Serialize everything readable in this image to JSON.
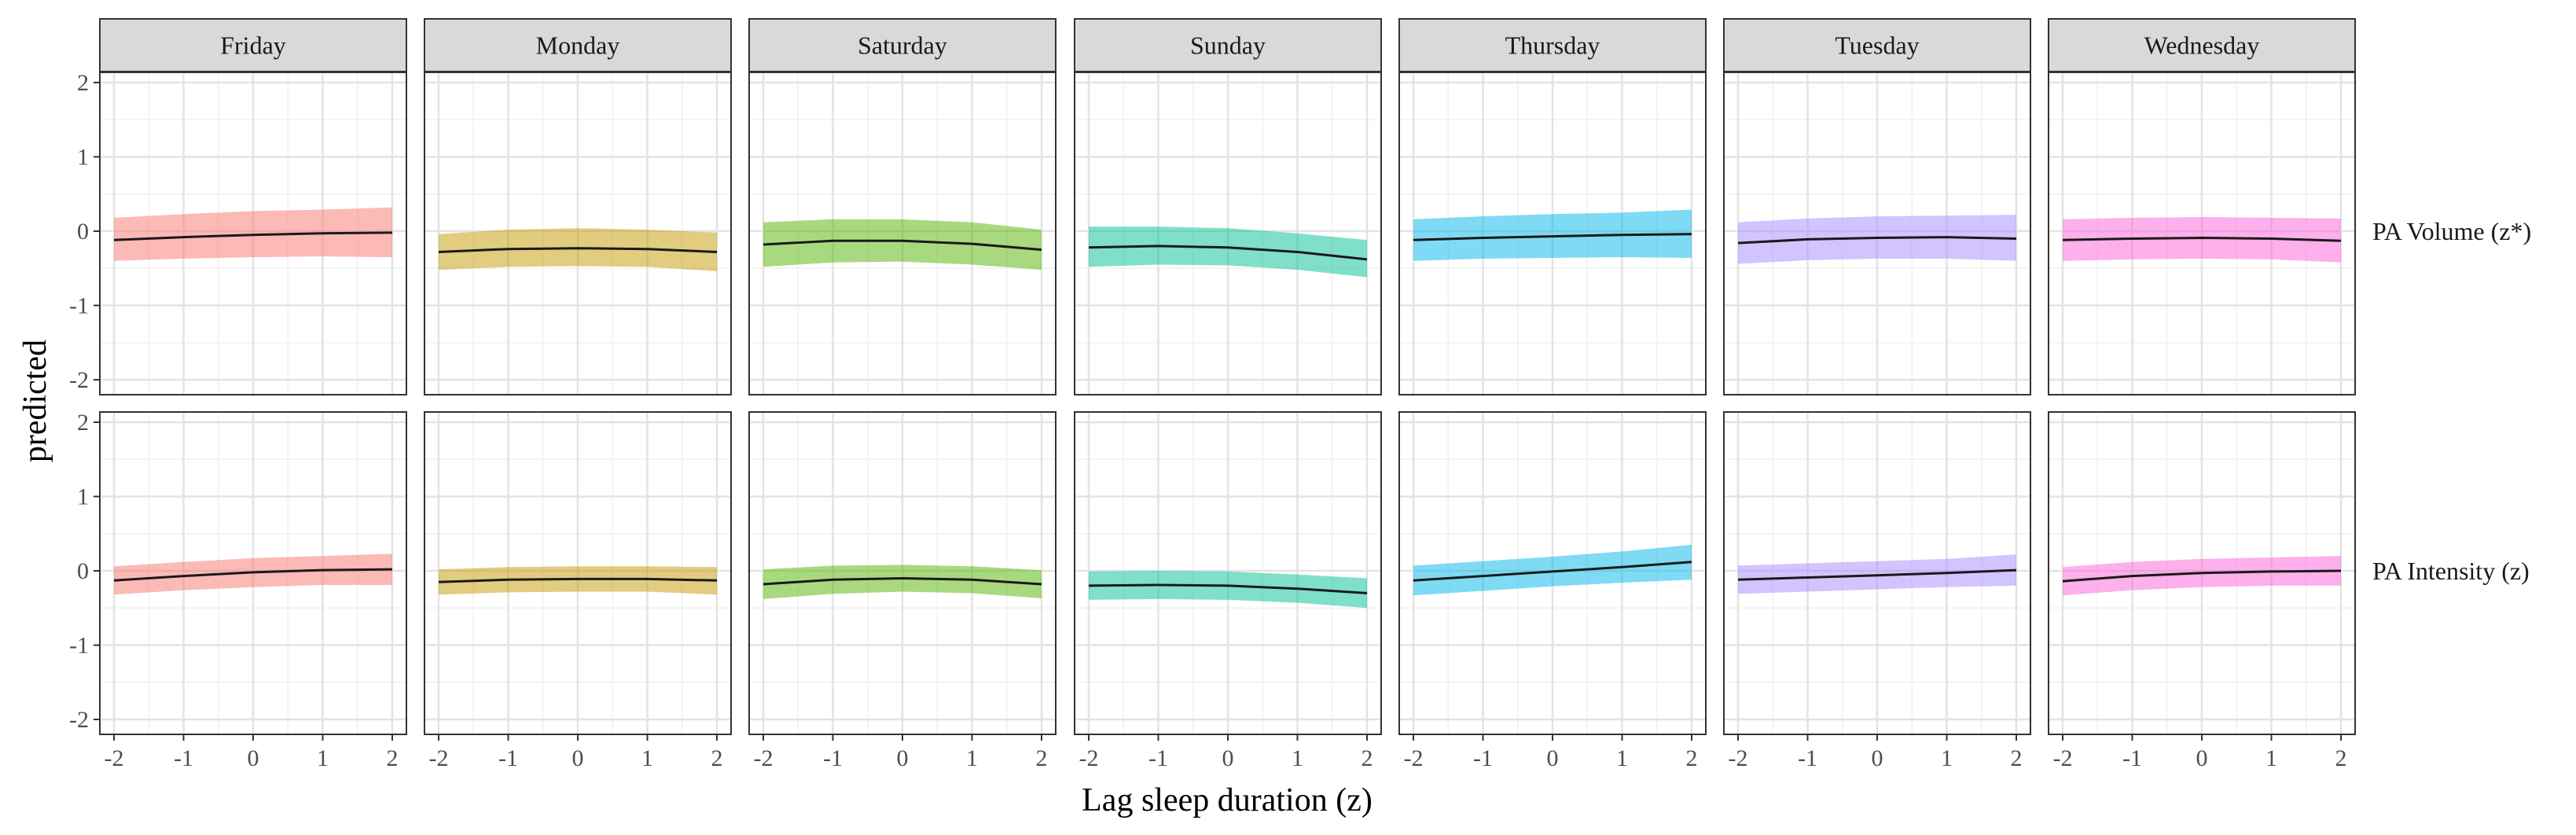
{
  "chart_data": {
    "type": "line",
    "xlabel": "Lag sleep duration (z)",
    "ylabel": "predicted",
    "xlim": [
      -2,
      2
    ],
    "ylim": [
      -2,
      2
    ],
    "xticks": [
      -2,
      -1,
      0,
      1,
      2
    ],
    "yticks": [
      -2,
      -1,
      0,
      1,
      2
    ],
    "xtick_labels": [
      "-2",
      "-1",
      "0",
      "1",
      "2"
    ],
    "ytick_labels": [
      "-2",
      "-1",
      "0",
      "1",
      "2"
    ],
    "columns": [
      "Friday",
      "Monday",
      "Saturday",
      "Sunday",
      "Thursday",
      "Tuesday",
      "Wednesday"
    ],
    "rows": [
      "PA Volume (z*)",
      "PA Intensity (z)"
    ],
    "colors": {
      "Friday": "#F8766D",
      "Monday": "#C49A00",
      "Saturday": "#53B400",
      "Sunday": "#00C094",
      "Thursday": "#00B6EB",
      "Tuesday": "#A58AFF",
      "Wednesday": "#FB61D7"
    },
    "x": [
      -2,
      -1,
      0,
      1,
      2
    ],
    "panels": [
      {
        "row": "PA Volume (z*)",
        "day": "Friday",
        "fit": [
          -0.12,
          -0.08,
          -0.05,
          -0.03,
          -0.02
        ],
        "lower": [
          -0.4,
          -0.37,
          -0.35,
          -0.34,
          -0.35
        ],
        "upper": [
          0.18,
          0.23,
          0.27,
          0.29,
          0.32
        ]
      },
      {
        "row": "PA Volume (z*)",
        "day": "Monday",
        "fit": [
          -0.28,
          -0.24,
          -0.23,
          -0.24,
          -0.28
        ],
        "lower": [
          -0.52,
          -0.48,
          -0.47,
          -0.48,
          -0.54
        ],
        "upper": [
          -0.04,
          0.02,
          0.04,
          0.02,
          -0.02
        ]
      },
      {
        "row": "PA Volume (z*)",
        "day": "Saturday",
        "fit": [
          -0.18,
          -0.13,
          -0.13,
          -0.17,
          -0.25
        ],
        "lower": [
          -0.48,
          -0.42,
          -0.41,
          -0.45,
          -0.52
        ],
        "upper": [
          0.12,
          0.16,
          0.16,
          0.12,
          0.02
        ]
      },
      {
        "row": "PA Volume (z*)",
        "day": "Sunday",
        "fit": [
          -0.22,
          -0.2,
          -0.22,
          -0.28,
          -0.38
        ],
        "lower": [
          -0.48,
          -0.45,
          -0.46,
          -0.52,
          -0.62
        ],
        "upper": [
          0.06,
          0.06,
          0.04,
          -0.03,
          -0.12
        ]
      },
      {
        "row": "PA Volume (z*)",
        "day": "Thursday",
        "fit": [
          -0.12,
          -0.09,
          -0.07,
          -0.05,
          -0.04
        ],
        "lower": [
          -0.4,
          -0.37,
          -0.36,
          -0.35,
          -0.36
        ],
        "upper": [
          0.16,
          0.2,
          0.23,
          0.25,
          0.29
        ]
      },
      {
        "row": "PA Volume (z*)",
        "day": "Tuesday",
        "fit": [
          -0.16,
          -0.11,
          -0.09,
          -0.08,
          -0.1
        ],
        "lower": [
          -0.44,
          -0.39,
          -0.37,
          -0.37,
          -0.4
        ],
        "upper": [
          0.12,
          0.17,
          0.2,
          0.21,
          0.22
        ]
      },
      {
        "row": "PA Volume (z*)",
        "day": "Wednesday",
        "fit": [
          -0.12,
          -0.1,
          -0.09,
          -0.1,
          -0.13
        ],
        "lower": [
          -0.4,
          -0.38,
          -0.37,
          -0.38,
          -0.42
        ],
        "upper": [
          0.16,
          0.18,
          0.19,
          0.18,
          0.17
        ]
      },
      {
        "row": "PA Intensity (z)",
        "day": "Friday",
        "fit": [
          -0.13,
          -0.07,
          -0.02,
          0.01,
          0.02
        ],
        "lower": [
          -0.32,
          -0.26,
          -0.22,
          -0.19,
          -0.19
        ],
        "upper": [
          0.06,
          0.12,
          0.17,
          0.2,
          0.23
        ]
      },
      {
        "row": "PA Intensity (z)",
        "day": "Monday",
        "fit": [
          -0.15,
          -0.12,
          -0.11,
          -0.11,
          -0.13
        ],
        "lower": [
          -0.32,
          -0.29,
          -0.28,
          -0.28,
          -0.32
        ],
        "upper": [
          0.02,
          0.05,
          0.06,
          0.06,
          0.05
        ]
      },
      {
        "row": "PA Intensity (z)",
        "day": "Saturday",
        "fit": [
          -0.18,
          -0.12,
          -0.1,
          -0.12,
          -0.18
        ],
        "lower": [
          -0.38,
          -0.31,
          -0.28,
          -0.3,
          -0.37
        ],
        "upper": [
          0.02,
          0.07,
          0.08,
          0.06,
          0.01
        ]
      },
      {
        "row": "PA Intensity (z)",
        "day": "Sunday",
        "fit": [
          -0.2,
          -0.19,
          -0.2,
          -0.24,
          -0.3
        ],
        "lower": [
          -0.39,
          -0.38,
          -0.39,
          -0.43,
          -0.5
        ],
        "upper": [
          -0.01,
          0.0,
          -0.01,
          -0.05,
          -0.1
        ]
      },
      {
        "row": "PA Intensity (z)",
        "day": "Thursday",
        "fit": [
          -0.13,
          -0.07,
          -0.01,
          0.05,
          0.12
        ],
        "lower": [
          -0.33,
          -0.27,
          -0.21,
          -0.16,
          -0.12
        ],
        "upper": [
          0.07,
          0.13,
          0.19,
          0.26,
          0.35
        ]
      },
      {
        "row": "PA Intensity (z)",
        "day": "Tuesday",
        "fit": [
          -0.12,
          -0.09,
          -0.06,
          -0.03,
          0.01
        ],
        "lower": [
          -0.31,
          -0.28,
          -0.25,
          -0.22,
          -0.2
        ],
        "upper": [
          0.07,
          0.1,
          0.13,
          0.16,
          0.22
        ]
      },
      {
        "row": "PA Intensity (z)",
        "day": "Wednesday",
        "fit": [
          -0.14,
          -0.07,
          -0.03,
          -0.01,
          0.0
        ],
        "lower": [
          -0.33,
          -0.26,
          -0.22,
          -0.2,
          -0.2
        ],
        "upper": [
          0.05,
          0.12,
          0.16,
          0.18,
          0.2
        ]
      }
    ]
  }
}
